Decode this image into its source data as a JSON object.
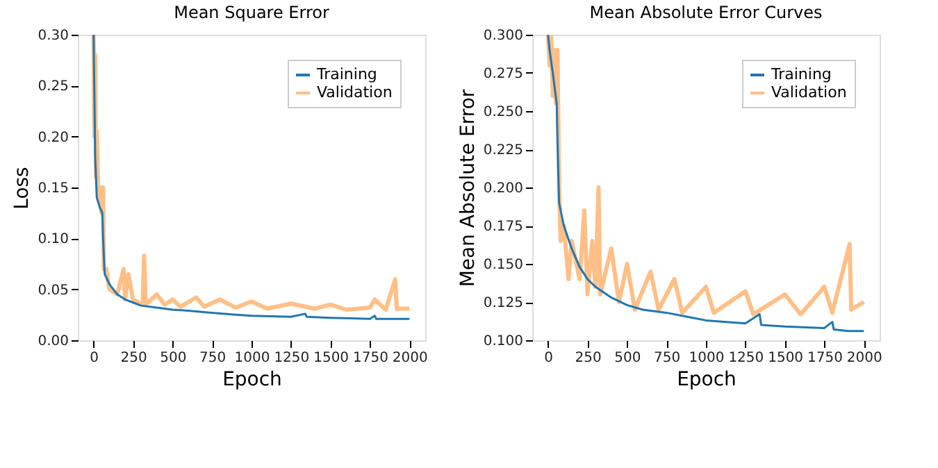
{
  "chart_data": [
    {
      "type": "line",
      "title": "Mean Square Error",
      "xlabel": "Epoch",
      "ylabel": "Loss",
      "xlim": [
        -100,
        2100
      ],
      "ylim": [
        0,
        0.3
      ],
      "xticks": [
        0,
        250,
        500,
        750,
        1000,
        1250,
        1500,
        1750,
        2000
      ],
      "yticks": [
        {
          "value": 0,
          "label": "0.00"
        },
        {
          "value": 0.05,
          "label": "0.05"
        },
        {
          "value": 0.1,
          "label": "0.10"
        },
        {
          "value": 0.15,
          "label": "0.15"
        },
        {
          "value": 0.2,
          "label": "0.20"
        },
        {
          "value": 0.25,
          "label": "0.25"
        },
        {
          "value": 0.3,
          "label": "0.30"
        }
      ],
      "grid": false,
      "legend": "top right",
      "series": [
        {
          "name": "Training",
          "color": "#1f77b4",
          "x": [
            0,
            10,
            20,
            40,
            55,
            60,
            70,
            100,
            150,
            200,
            250,
            300,
            400,
            500,
            600,
            750,
            900,
            1000,
            1250,
            1340,
            1350,
            1500,
            1750,
            1780,
            1790,
            2000
          ],
          "values": [
            0.3,
            0.18,
            0.14,
            0.13,
            0.125,
            0.1,
            0.065,
            0.055,
            0.045,
            0.04,
            0.037,
            0.034,
            0.032,
            0.03,
            0.029,
            0.027,
            0.025,
            0.024,
            0.023,
            0.026,
            0.023,
            0.022,
            0.021,
            0.024,
            0.021,
            0.021
          ]
        },
        {
          "name": "Validation",
          "color": "#ffbf86",
          "x": [
            0,
            5,
            10,
            15,
            20,
            30,
            40,
            50,
            60,
            65,
            80,
            100,
            150,
            190,
            200,
            220,
            250,
            310,
            320,
            330,
            400,
            450,
            500,
            550,
            650,
            700,
            800,
            900,
            1000,
            1100,
            1250,
            1400,
            1500,
            1600,
            1750,
            1780,
            1850,
            1910,
            1920,
            2000
          ],
          "values": [
            0.3,
            0.2,
            0.28,
            0.16,
            0.205,
            0.14,
            0.15,
            0.125,
            0.15,
            0.07,
            0.07,
            0.05,
            0.045,
            0.07,
            0.04,
            0.065,
            0.04,
            0.035,
            0.083,
            0.035,
            0.045,
            0.035,
            0.04,
            0.033,
            0.042,
            0.033,
            0.04,
            0.032,
            0.038,
            0.031,
            0.036,
            0.031,
            0.035,
            0.03,
            0.032,
            0.04,
            0.03,
            0.06,
            0.031,
            0.031
          ]
        }
      ]
    },
    {
      "type": "line",
      "title": "Mean Absolute Error Curves",
      "xlabel": "Epoch",
      "ylabel": "Mean Absolute Error",
      "xlim": [
        -100,
        2100
      ],
      "ylim": [
        0.1,
        0.3
      ],
      "xticks": [
        0,
        250,
        500,
        750,
        1000,
        1250,
        1500,
        1750,
        2000
      ],
      "yticks": [
        {
          "value": 0.1,
          "label": "0.100"
        },
        {
          "value": 0.125,
          "label": "0.125"
        },
        {
          "value": 0.15,
          "label": "0.150"
        },
        {
          "value": 0.175,
          "label": "0.175"
        },
        {
          "value": 0.2,
          "label": "0.200"
        },
        {
          "value": 0.225,
          "label": "0.225"
        },
        {
          "value": 0.25,
          "label": "0.250"
        },
        {
          "value": 0.275,
          "label": "0.275"
        },
        {
          "value": 0.3,
          "label": "0.300"
        }
      ],
      "grid": false,
      "legend": "top right",
      "series": [
        {
          "name": "Training",
          "color": "#1f77b4",
          "x": [
            0,
            10,
            30,
            55,
            60,
            70,
            100,
            150,
            200,
            250,
            300,
            400,
            500,
            600,
            750,
            900,
            1000,
            1250,
            1340,
            1350,
            1500,
            1750,
            1800,
            1810,
            1900,
            2000
          ],
          "values": [
            0.3,
            0.29,
            0.275,
            0.255,
            0.23,
            0.19,
            0.175,
            0.16,
            0.148,
            0.14,
            0.135,
            0.128,
            0.123,
            0.12,
            0.118,
            0.115,
            0.113,
            0.111,
            0.117,
            0.11,
            0.109,
            0.108,
            0.112,
            0.107,
            0.106,
            0.106
          ]
        },
        {
          "name": "Validation",
          "color": "#ffbf86",
          "x": [
            0,
            10,
            20,
            30,
            40,
            50,
            60,
            70,
            80,
            100,
            130,
            150,
            180,
            200,
            230,
            250,
            280,
            300,
            320,
            330,
            400,
            450,
            500,
            550,
            650,
            700,
            800,
            850,
            1000,
            1050,
            1250,
            1300,
            1500,
            1600,
            1750,
            1800,
            1910,
            1920,
            2000
          ],
          "values": [
            0.3,
            0.28,
            0.3,
            0.26,
            0.29,
            0.255,
            0.29,
            0.2,
            0.165,
            0.175,
            0.14,
            0.165,
            0.15,
            0.14,
            0.185,
            0.13,
            0.165,
            0.135,
            0.2,
            0.13,
            0.16,
            0.125,
            0.15,
            0.12,
            0.145,
            0.12,
            0.14,
            0.118,
            0.135,
            0.118,
            0.132,
            0.117,
            0.13,
            0.117,
            0.135,
            0.118,
            0.163,
            0.12,
            0.125
          ]
        }
      ]
    }
  ]
}
